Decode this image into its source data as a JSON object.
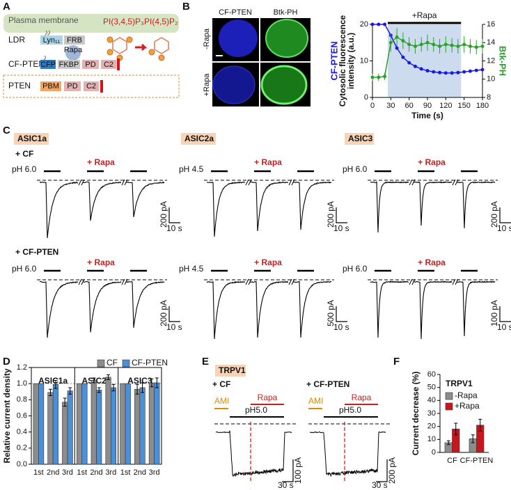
{
  "panel_labels": [
    "A",
    "B",
    "C",
    "D",
    "E",
    "F"
  ],
  "panel_a": {
    "membrane": "Plasma membrane",
    "pip3": "PI(3,4,5)P₃",
    "pip2": "PI(4,5)P₂",
    "ldr": {
      "label": "LDR",
      "lyn": "Lyn₁₁",
      "frb": "FRB"
    },
    "rapa": "Rapa",
    "cf_pten": {
      "label": "CF-PTEN",
      "domains": [
        "CFP",
        "FKBP",
        "PD",
        "C2"
      ]
    },
    "pten": {
      "label": "PTEN",
      "domains": [
        "PBM",
        "PD",
        "C2"
      ]
    }
  },
  "panel_b": {
    "image_columns": [
      "CF-PTEN",
      "Btk-PH"
    ],
    "image_rows": [
      "-Rapa",
      "+Rapa"
    ]
  },
  "panel_c": {
    "constructs": [
      "ASIC1a",
      "ASIC2a",
      "ASIC3"
    ],
    "rows": [
      {
        "label": "+ CF",
        "cells": [
          {
            "ph": "pH 6.0",
            "rapa": "+ Rapa",
            "scale_y": "200 pA",
            "scale_x": "10 s"
          },
          {
            "ph": "pH 4.5",
            "rapa": "+ Rapa",
            "scale_y": "200 pA",
            "scale_x": "10 s"
          },
          {
            "ph": "pH 6.0",
            "rapa": "+ Rapa",
            "scale_y": "200 pA",
            "scale_x": "10 s"
          }
        ]
      },
      {
        "label": "+ CF-PTEN",
        "cells": [
          {
            "ph": "pH 6.0",
            "rapa": "+ Rapa",
            "scale_y": "200 pA",
            "scale_x": "10 s"
          },
          {
            "ph": "pH 4.5",
            "rapa": "+ Rapa",
            "scale_y": "500 pA",
            "scale_x": "10 s"
          },
          {
            "ph": "pH 6.0",
            "rapa": "+ Rapa",
            "scale_y": "100 pA",
            "scale_x": "10 s"
          }
        ]
      }
    ]
  },
  "panel_e": {
    "title": "TRPV1",
    "traces": [
      {
        "label": "+ CF",
        "ami": "AMI",
        "rapa": "Rapa",
        "ph": "pH5.0",
        "scale_y": "100 pA",
        "scale_x": "30 s"
      },
      {
        "label": "+ CF-PTEN",
        "ami": "AMI",
        "rapa": "Rapa",
        "ph": "pH5.0",
        "scale_y": "200 pA",
        "scale_x": "30 s"
      }
    ]
  },
  "chart_data": [
    {
      "type": "line",
      "annotation": "+Rapa",
      "rapa_span": [
        25,
        145
      ],
      "xlabel": "Time (s)",
      "ylabel": [
        "Cytosolic fluorescence",
        "intensity (a.u.)"
      ],
      "x": [
        0,
        10,
        20,
        30,
        40,
        50,
        60,
        70,
        80,
        90,
        100,
        110,
        120,
        130,
        140,
        150,
        160,
        170,
        180
      ],
      "xlim": [
        0,
        180
      ],
      "xticks": [
        0,
        30,
        60,
        90,
        120,
        150,
        180
      ],
      "ylim": [
        0,
        20
      ],
      "yticks": [
        0,
        10,
        20
      ],
      "y2lim": [
        8,
        16
      ],
      "y2ticks": [
        8,
        10,
        12,
        14,
        16
      ],
      "series": [
        {
          "name": "CF-PTEN",
          "color": "#1a1adc",
          "values": [
            20,
            20,
            20,
            17,
            13.5,
            11,
            9.5,
            8.5,
            7.8,
            7.3,
            7,
            6.8,
            6.7,
            6.7,
            6.8,
            7,
            7.2,
            7.4,
            7.6
          ]
        },
        {
          "name": "Btk-PH",
          "color": "#2ca02c",
          "axis": "y2",
          "values": [
            10.2,
            10.2,
            10.3,
            14,
            14.6,
            14.2,
            13.8,
            13.6,
            13.8,
            14,
            13.8,
            13.6,
            13.8,
            13.7,
            13.6,
            13.8,
            13.6,
            13.5,
            13.6
          ],
          "errors": [
            0.4,
            0.4,
            0.4,
            1,
            1,
            0.9,
            0.8,
            0.8,
            0.8,
            0.9,
            0.8,
            0.8,
            0.9,
            0.8,
            0.8,
            0.9,
            0.8,
            0.8,
            0.8
          ]
        }
      ]
    },
    {
      "type": "bar",
      "ylabel": "Relative current density",
      "legend": "top",
      "groups": [
        "ASIC1a",
        "ASIC2a",
        "ASIC3"
      ],
      "categories": [
        "1st",
        "2nd",
        "3rd",
        "1st",
        "2nd",
        "3rd",
        "1st",
        "2nd",
        "3rd"
      ],
      "ylim": [
        0,
        1.2
      ],
      "yticks": [
        {
          "value": 0,
          "label": "0.0"
        },
        {
          "value": 0.2,
          "label": "0.2"
        },
        {
          "value": 0.4,
          "label": "0.4"
        },
        {
          "value": 0.6,
          "label": "0.6"
        },
        {
          "value": 0.8,
          "label": "0.8"
        },
        {
          "value": 1,
          "label": "1.0"
        },
        {
          "value": 1.2,
          "label": "1.2"
        }
      ],
      "reference_line": 1,
      "series": [
        {
          "name": "CF",
          "color": "#8c8c8c",
          "values": [
            1,
            0.89,
            0.77,
            1,
            1.04,
            1.08,
            1,
            0.93,
            1.01
          ],
          "errors": [
            null,
            0.04,
            0.05,
            null,
            0.03,
            0.03,
            null,
            0.06,
            0.05
          ]
        },
        {
          "name": "CF-PTEN",
          "color": "#4a90d9",
          "values": [
            1,
            0.99,
            0.91,
            1,
            0.92,
            0.95,
            1,
            0.95,
            1.01
          ],
          "errors": [
            null,
            0.05,
            0.04,
            null,
            0.03,
            0.04,
            null,
            0.06,
            0.06
          ]
        }
      ]
    },
    {
      "type": "bar",
      "ylabel": "Current decrease (%)",
      "legend": "upper left",
      "legend_title": "TRPV1",
      "categories": [
        "CF",
        "CF-PTEN"
      ],
      "ylim": [
        0,
        60
      ],
      "yticks": [
        0,
        10,
        20,
        30,
        40,
        50,
        60
      ],
      "series": [
        {
          "name": "-Rapa",
          "color": "#8c8c8c",
          "values": [
            7.5,
            10.5
          ],
          "errors": [
            1.5,
            3
          ]
        },
        {
          "name": "+Rapa",
          "color": "#c8161d",
          "values": [
            18,
            21
          ],
          "errors": [
            4.5,
            4.5
          ]
        }
      ]
    }
  ]
}
